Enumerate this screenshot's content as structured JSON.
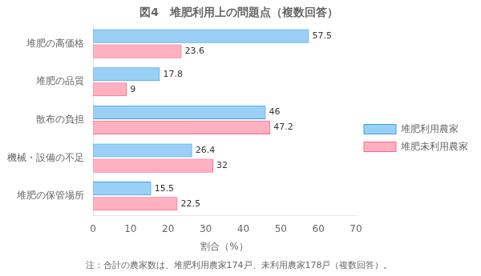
{
  "chart_data": {
    "type": "bar",
    "orientation": "horizontal",
    "title": "図4　堆肥利用上の問題点（複数回答）",
    "footnote": "注：合計の農家数は、堆肥利用農家174戸、未利用農家178戸（複数回答）。",
    "x_label": "割合（%）",
    "categories": [
      "堆肥の高価格",
      "堆肥の品質",
      "散布の負担",
      "機械・設備の不足",
      "堆肥の保管場所"
    ],
    "series": [
      {
        "name": "堆肥利用農家",
        "values": [
          57.5,
          17.8,
          46,
          26.4,
          15.5
        ]
      },
      {
        "name": "堆肥未利用農家",
        "values": [
          23.6,
          9,
          47.2,
          32,
          22.5
        ]
      }
    ],
    "xlim": [
      0,
      70
    ],
    "xticks": [
      0,
      10,
      20,
      30,
      40,
      50,
      60,
      70
    ],
    "grid": false,
    "legend": "right",
    "data_labels": true
  }
}
